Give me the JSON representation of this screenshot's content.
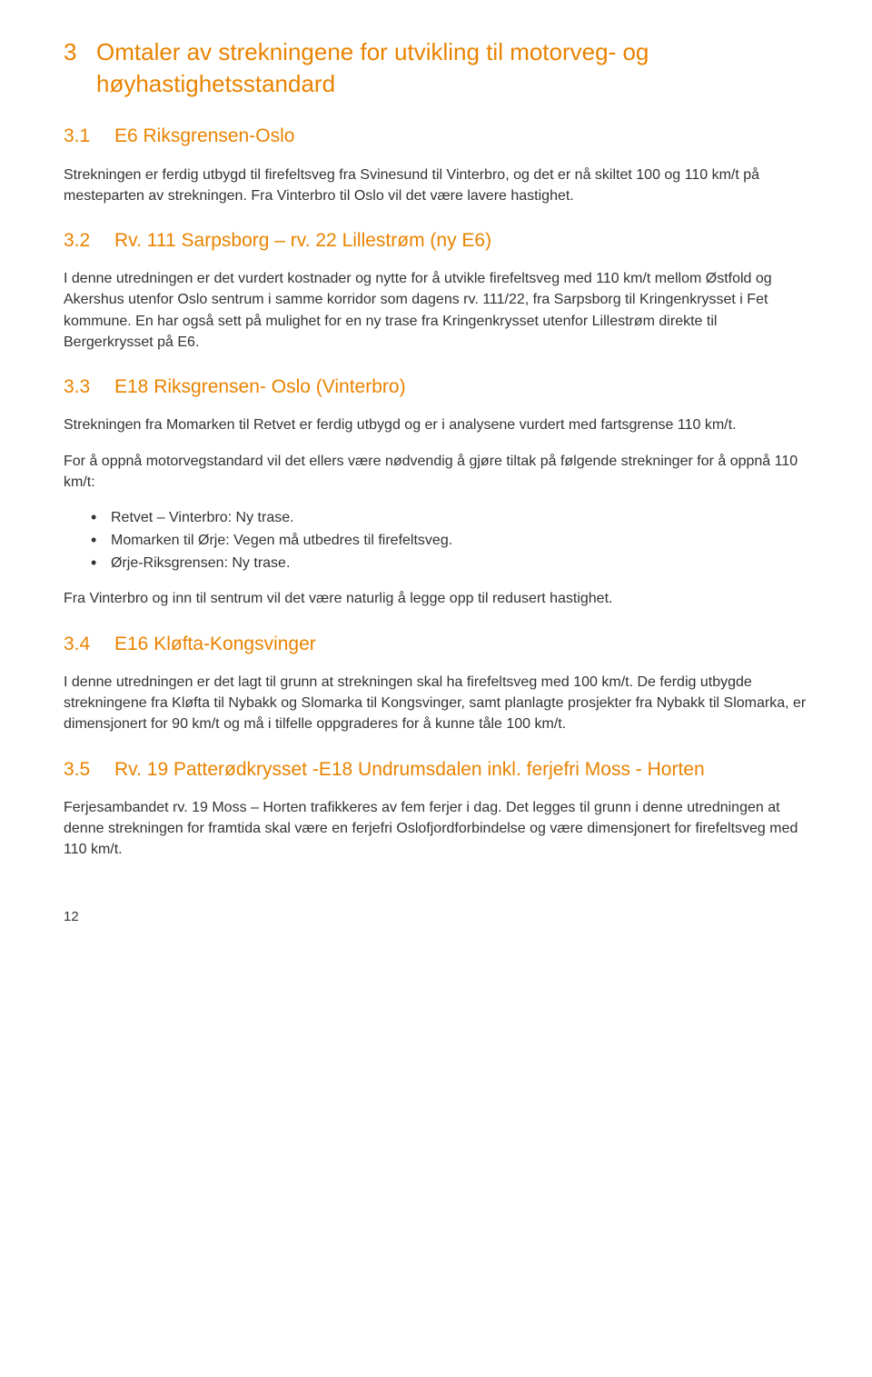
{
  "colors": {
    "heading": "#e98300",
    "body_text": "#333333",
    "background": "#ffffff"
  },
  "typography": {
    "h1_fontsize": 26,
    "h2_fontsize": 21,
    "body_fontsize": 16,
    "font_family": "Verdana, Geneva, sans-serif"
  },
  "h1": {
    "num": "3",
    "text": "Omtaler av strekningene for utvikling til motorveg- og høyhastighetsstandard"
  },
  "sections": [
    {
      "num": "3.1",
      "title": "E6 Riksgrensen-Oslo",
      "paragraphs": [
        "Strekningen er ferdig utbygd til firefeltsveg fra Svinesund til Vinterbro, og det er nå skiltet 100 og 110 km/t på mesteparten av strekningen. Fra Vinterbro til Oslo vil det være lavere hastighet."
      ],
      "bullets": []
    },
    {
      "num": "3.2",
      "title": "Rv. 111 Sarpsborg – rv. 22 Lillestrøm (ny E6)",
      "paragraphs": [
        "I denne utredningen er det vurdert kostnader og nytte for å utvikle firefeltsveg med 110 km/t mellom Østfold og Akershus utenfor Oslo sentrum i samme korridor som dagens rv. 111/22, fra Sarpsborg til Kringenkrysset i Fet kommune. En har også sett på mulighet for en ny trase fra Kringenkrysset utenfor Lillestrøm direkte til Bergerkrysset på E6."
      ],
      "bullets": []
    },
    {
      "num": "3.3",
      "title": "E18 Riksgrensen- Oslo (Vinterbro)",
      "paragraphs": [
        "Strekningen fra Momarken til Retvet er ferdig utbygd og er i analysene vurdert med fartsgrense 110 km/t.",
        "For å oppnå motorvegstandard vil det ellers være nødvendig å gjøre tiltak på følgende strekninger for å oppnå 110 km/t:"
      ],
      "bullets": [
        "Retvet – Vinterbro: Ny trase.",
        "Momarken til Ørje: Vegen må utbedres til firefeltsveg.",
        "Ørje-Riksgrensen: Ny trase."
      ],
      "paragraphs_after": [
        "Fra Vinterbro og inn til sentrum vil det være naturlig å legge opp til redusert hastighet."
      ]
    },
    {
      "num": "3.4",
      "title": "E16 Kløfta-Kongsvinger",
      "paragraphs": [
        "I denne utredningen er det lagt til grunn at strekningen skal ha firefeltsveg med 100 km/t. De ferdig utbygde strekningene fra Kløfta til Nybakk og Slomarka til Kongsvinger, samt planlagte prosjekter fra Nybakk til Slomarka, er dimensjonert for 90 km/t og må i tilfelle oppgraderes for å kunne tåle 100 km/t."
      ],
      "bullets": []
    },
    {
      "num": "3.5",
      "title": "Rv. 19 Patterødkrysset -E18 Undrumsdalen inkl. ferjefri Moss - Horten",
      "paragraphs": [
        "Ferjesambandet rv. 19 Moss – Horten trafikkeres av fem ferjer i dag. Det legges til grunn i denne utredningen at denne strekningen for framtida skal være en ferjefri Oslofjordforbindelse og være dimensjonert for firefeltsveg med 110 km/t."
      ],
      "bullets": []
    }
  ],
  "page_number": "12"
}
